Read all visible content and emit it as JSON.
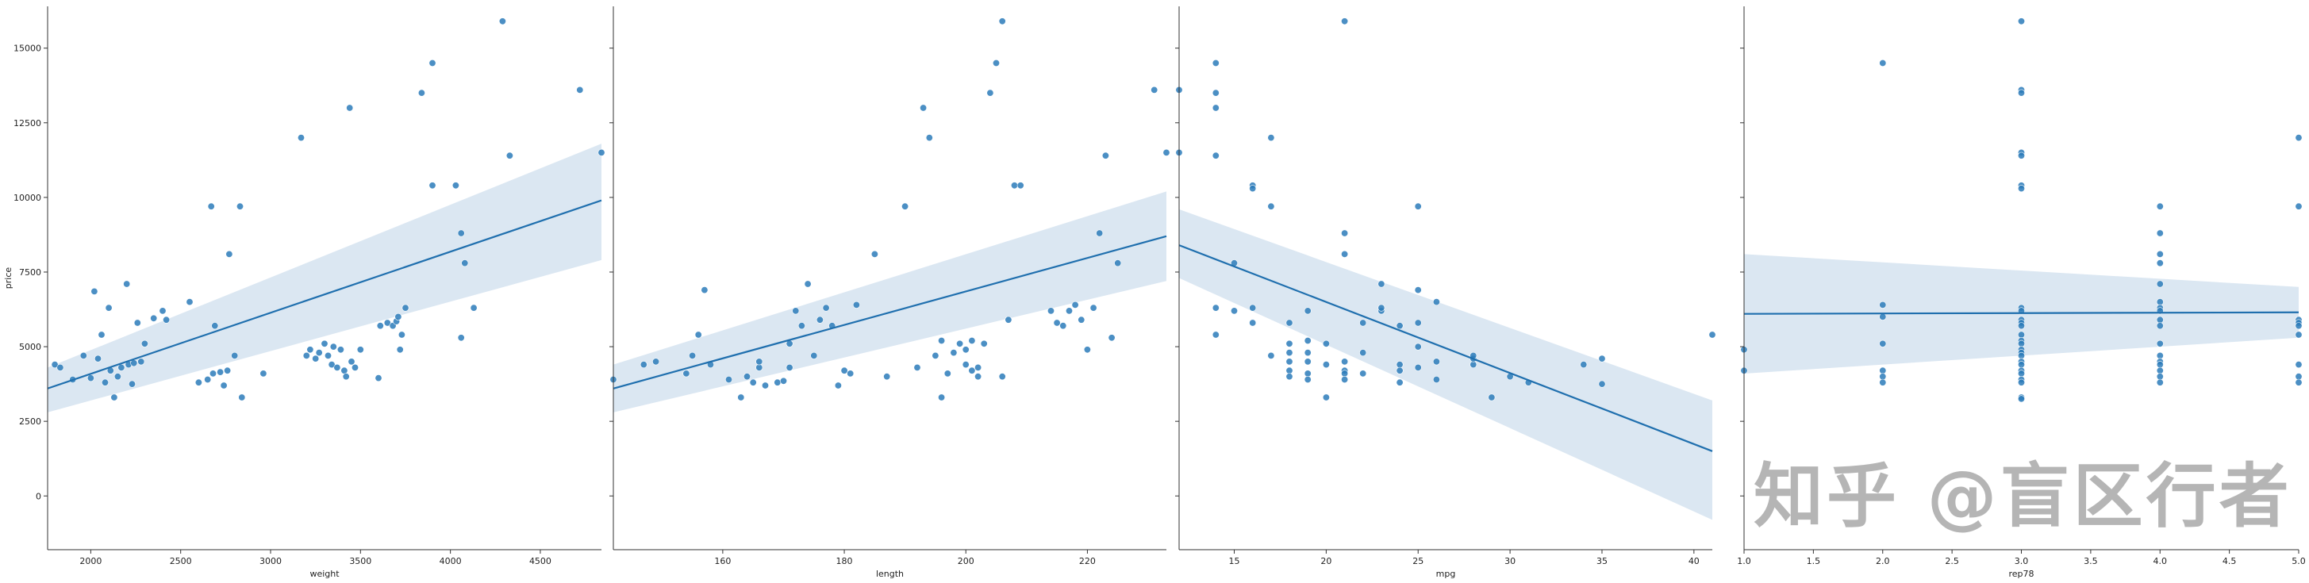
{
  "chart_data": [
    {
      "type": "scatter",
      "id": "weight",
      "xlabel": "weight",
      "ylabel": "price",
      "xlim": [
        1760,
        4840
      ],
      "xticks": [
        2000,
        2500,
        3000,
        3500,
        4000,
        4500
      ],
      "regression": {
        "x0": 1760,
        "y0": 3600,
        "x1": 4840,
        "y1": 9900,
        "lo0": 2800,
        "hi0": 4300,
        "lo1": 7900,
        "hi1": 11800
      },
      "points": [
        [
          1800,
          4400
        ],
        [
          1830,
          4300
        ],
        [
          1900,
          3900
        ],
        [
          1960,
          4700
        ],
        [
          2000,
          3950
        ],
        [
          2020,
          6850
        ],
        [
          2040,
          4600
        ],
        [
          2060,
          5400
        ],
        [
          2080,
          3800
        ],
        [
          2100,
          6300
        ],
        [
          2110,
          4200
        ],
        [
          2130,
          3300
        ],
        [
          2150,
          4000
        ],
        [
          2170,
          4300
        ],
        [
          2200,
          7100
        ],
        [
          2210,
          4400
        ],
        [
          2230,
          3750
        ],
        [
          2240,
          4450
        ],
        [
          2260,
          5800
        ],
        [
          2280,
          4500
        ],
        [
          2300,
          5100
        ],
        [
          2350,
          5950
        ],
        [
          2400,
          6200
        ],
        [
          2420,
          5900
        ],
        [
          2550,
          6500
        ],
        [
          2600,
          3800
        ],
        [
          2650,
          3900
        ],
        [
          2670,
          9700
        ],
        [
          2680,
          4100
        ],
        [
          2690,
          5700
        ],
        [
          2720,
          4150
        ],
        [
          2740,
          3700
        ],
        [
          2760,
          4200
        ],
        [
          2770,
          8100
        ],
        [
          2800,
          4700
        ],
        [
          2830,
          9700
        ],
        [
          2840,
          3300
        ],
        [
          2960,
          4100
        ],
        [
          3170,
          12000
        ],
        [
          3200,
          4700
        ],
        [
          3220,
          4900
        ],
        [
          3250,
          4600
        ],
        [
          3270,
          4800
        ],
        [
          3300,
          5100
        ],
        [
          3320,
          4700
        ],
        [
          3340,
          4400
        ],
        [
          3350,
          5000
        ],
        [
          3370,
          4300
        ],
        [
          3390,
          4900
        ],
        [
          3410,
          4200
        ],
        [
          3420,
          4000
        ],
        [
          3440,
          13000
        ],
        [
          3450,
          4500
        ],
        [
          3470,
          4300
        ],
        [
          3500,
          4900
        ],
        [
          3600,
          3950
        ],
        [
          3610,
          5700
        ],
        [
          3650,
          5800
        ],
        [
          3680,
          5700
        ],
        [
          3700,
          5850
        ],
        [
          3710,
          6000
        ],
        [
          3720,
          4900
        ],
        [
          3730,
          5400
        ],
        [
          3750,
          6300
        ],
        [
          3840,
          13500
        ],
        [
          3900,
          14500
        ],
        [
          3900,
          10400
        ],
        [
          4030,
          10400
        ],
        [
          4060,
          5300
        ],
        [
          4060,
          8800
        ],
        [
          4080,
          7800
        ],
        [
          4130,
          6300
        ],
        [
          4290,
          15900
        ],
        [
          4330,
          11400
        ],
        [
          4720,
          13600
        ],
        [
          4840,
          11500
        ]
      ]
    },
    {
      "type": "scatter",
      "id": "length",
      "xlabel": "length",
      "ylabel": "",
      "xlim": [
        142,
        233
      ],
      "xticks": [
        160,
        180,
        200,
        220
      ],
      "regression": {
        "x0": 142,
        "y0": 3600,
        "x1": 233,
        "y1": 8700,
        "lo0": 2800,
        "hi0": 4400,
        "lo1": 7200,
        "hi1": 10200
      },
      "points": [
        [
          142,
          3900
        ],
        [
          147,
          4400
        ],
        [
          149,
          4500
        ],
        [
          154,
          4100
        ],
        [
          155,
          4700
        ],
        [
          156,
          5400
        ],
        [
          157,
          6900
        ],
        [
          158,
          4400
        ],
        [
          161,
          3900
        ],
        [
          163,
          3300
        ],
        [
          164,
          4000
        ],
        [
          165,
          3800
        ],
        [
          166,
          4300
        ],
        [
          166,
          4500
        ],
        [
          167,
          3700
        ],
        [
          169,
          3800
        ],
        [
          170,
          3850
        ],
        [
          171,
          4300
        ],
        [
          171,
          5100
        ],
        [
          172,
          6200
        ],
        [
          173,
          5700
        ],
        [
          174,
          7100
        ],
        [
          175,
          4700
        ],
        [
          176,
          5900
        ],
        [
          177,
          6300
        ],
        [
          178,
          5700
        ],
        [
          179,
          3700
        ],
        [
          180,
          4200
        ],
        [
          181,
          4100
        ],
        [
          182,
          6400
        ],
        [
          185,
          8100
        ],
        [
          187,
          4000
        ],
        [
          190,
          9700
        ],
        [
          192,
          4300
        ],
        [
          193,
          13000
        ],
        [
          194,
          12000
        ],
        [
          195,
          4700
        ],
        [
          196,
          5200
        ],
        [
          196,
          3300
        ],
        [
          197,
          4100
        ],
        [
          198,
          4800
        ],
        [
          199,
          5100
        ],
        [
          200,
          4900
        ],
        [
          200,
          4400
        ],
        [
          201,
          5200
        ],
        [
          201,
          4200
        ],
        [
          202,
          4000
        ],
        [
          202,
          4300
        ],
        [
          203,
          5100
        ],
        [
          204,
          13500
        ],
        [
          205,
          14500
        ],
        [
          206,
          15900
        ],
        [
          206,
          4000
        ],
        [
          207,
          5900
        ],
        [
          208,
          10400
        ],
        [
          209,
          10400
        ],
        [
          214,
          6200
        ],
        [
          215,
          5800
        ],
        [
          216,
          5700
        ],
        [
          217,
          6200
        ],
        [
          218,
          6400
        ],
        [
          219,
          5900
        ],
        [
          220,
          4900
        ],
        [
          221,
          6300
        ],
        [
          222,
          8800
        ],
        [
          223,
          11400
        ],
        [
          224,
          5300
        ],
        [
          225,
          7800
        ],
        [
          231,
          13600
        ],
        [
          233,
          11500
        ]
      ]
    },
    {
      "type": "scatter",
      "id": "mpg",
      "xlabel": "mpg",
      "ylabel": "",
      "xlim": [
        12,
        41
      ],
      "xticks": [
        15,
        20,
        25,
        30,
        35,
        40
      ],
      "regression": {
        "x0": 12,
        "y0": 8400,
        "x1": 41,
        "y1": 1500,
        "lo0": 7300,
        "hi0": 9600,
        "lo1": -800,
        "hi1": 3200
      },
      "points": [
        [
          12,
          13600
        ],
        [
          12,
          11500
        ],
        [
          14,
          14500
        ],
        [
          14,
          13500
        ],
        [
          14,
          13000
        ],
        [
          14,
          11400
        ],
        [
          14,
          6300
        ],
        [
          14,
          5400
        ],
        [
          15,
          7800
        ],
        [
          15,
          6200
        ],
        [
          16,
          10400
        ],
        [
          16,
          10300
        ],
        [
          16,
          6300
        ],
        [
          16,
          5800
        ],
        [
          17,
          12000
        ],
        [
          17,
          9700
        ],
        [
          17,
          4700
        ],
        [
          18,
          5800
        ],
        [
          18,
          5100
        ],
        [
          18,
          4800
        ],
        [
          18,
          4500
        ],
        [
          18,
          4200
        ],
        [
          18,
          4000
        ],
        [
          19,
          6200
        ],
        [
          19,
          5200
        ],
        [
          19,
          4800
        ],
        [
          19,
          4500
        ],
        [
          19,
          4100
        ],
        [
          19,
          3900
        ],
        [
          20,
          4400
        ],
        [
          20,
          5100
        ],
        [
          20,
          3300
        ],
        [
          21,
          15900
        ],
        [
          21,
          8800
        ],
        [
          21,
          8100
        ],
        [
          21,
          4500
        ],
        [
          21,
          4200
        ],
        [
          21,
          4100
        ],
        [
          21,
          3900
        ],
        [
          22,
          5800
        ],
        [
          22,
          4800
        ],
        [
          22,
          4100
        ],
        [
          23,
          7100
        ],
        [
          23,
          6200
        ],
        [
          23,
          6300
        ],
        [
          24,
          5700
        ],
        [
          24,
          4400
        ],
        [
          24,
          4200
        ],
        [
          24,
          3800
        ],
        [
          25,
          9700
        ],
        [
          25,
          6900
        ],
        [
          25,
          5800
        ],
        [
          25,
          5000
        ],
        [
          25,
          4300
        ],
        [
          26,
          6500
        ],
        [
          26,
          4500
        ],
        [
          26,
          3900
        ],
        [
          28,
          4400
        ],
        [
          28,
          4600
        ],
        [
          28,
          4700
        ],
        [
          29,
          3300
        ],
        [
          30,
          4000
        ],
        [
          31,
          3800
        ],
        [
          34,
          4400
        ],
        [
          35,
          4600
        ],
        [
          35,
          3750
        ],
        [
          41,
          5400
        ]
      ]
    },
    {
      "type": "scatter",
      "id": "rep78",
      "xlabel": "rep78",
      "ylabel": "",
      "xlim": [
        1.0,
        5.0
      ],
      "xticks": [
        "1.0",
        "1.5",
        "2.0",
        "2.5",
        "3.0",
        "3.5",
        "4.0",
        "4.5",
        "5.0"
      ],
      "xtick_values": [
        1.0,
        1.5,
        2.0,
        2.5,
        3.0,
        3.5,
        4.0,
        4.5,
        5.0
      ],
      "regression": {
        "x0": 1.0,
        "y0": 6100,
        "x1": 5.0,
        "y1": 6150,
        "lo0": 4100,
        "hi0": 8100,
        "lo1": 5300,
        "hi1": 7000
      },
      "points": [
        [
          1,
          4900
        ],
        [
          1,
          4200
        ],
        [
          2,
          14500
        ],
        [
          2,
          6400
        ],
        [
          2,
          6000
        ],
        [
          2,
          5100
        ],
        [
          2,
          4200
        ],
        [
          2,
          4000
        ],
        [
          2,
          3800
        ],
        [
          3,
          15900
        ],
        [
          3,
          13600
        ],
        [
          3,
          13500
        ],
        [
          3,
          11500
        ],
        [
          3,
          11400
        ],
        [
          3,
          10400
        ],
        [
          3,
          10300
        ],
        [
          3,
          6300
        ],
        [
          3,
          6200
        ],
        [
          3,
          5900
        ],
        [
          3,
          5800
        ],
        [
          3,
          5700
        ],
        [
          3,
          5400
        ],
        [
          3,
          5200
        ],
        [
          3,
          5100
        ],
        [
          3,
          4900
        ],
        [
          3,
          4800
        ],
        [
          3,
          4700
        ],
        [
          3,
          4500
        ],
        [
          3,
          4400
        ],
        [
          3,
          4200
        ],
        [
          3,
          4100
        ],
        [
          3,
          3900
        ],
        [
          3,
          3800
        ],
        [
          3,
          3300
        ],
        [
          3,
          3250
        ],
        [
          4,
          9700
        ],
        [
          4,
          8800
        ],
        [
          4,
          8100
        ],
        [
          4,
          7800
        ],
        [
          4,
          7100
        ],
        [
          4,
          6500
        ],
        [
          4,
          6300
        ],
        [
          4,
          6200
        ],
        [
          4,
          5900
        ],
        [
          4,
          5700
        ],
        [
          4,
          5100
        ],
        [
          4,
          4700
        ],
        [
          4,
          4500
        ],
        [
          4,
          4400
        ],
        [
          4,
          4200
        ],
        [
          4,
          4000
        ],
        [
          4,
          3800
        ],
        [
          5,
          12000
        ],
        [
          5,
          9700
        ],
        [
          5,
          5900
        ],
        [
          5,
          5800
        ],
        [
          5,
          5700
        ],
        [
          5,
          5400
        ],
        [
          5,
          4400
        ],
        [
          5,
          4000
        ],
        [
          5,
          3800
        ]
      ]
    }
  ],
  "shared_y": {
    "label": "price",
    "ylim": [
      -1800,
      16400
    ],
    "yticks": [
      0,
      2500,
      5000,
      7500,
      10000,
      12500,
      15000
    ]
  },
  "colors": {
    "point": "#2b7bba",
    "line": "#1f6fae",
    "band": "#dbe7f2",
    "axis": "#333333"
  },
  "watermark": "知乎 @盲区行者"
}
